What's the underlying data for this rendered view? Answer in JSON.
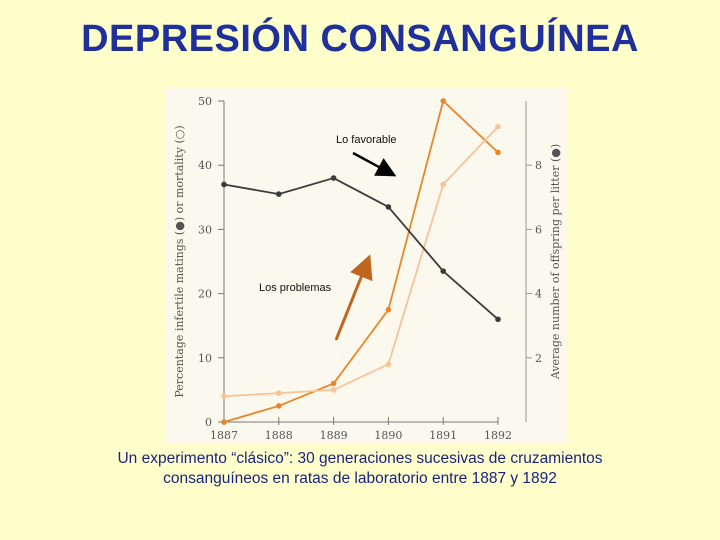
{
  "slide": {
    "title": "DEPRESIÓN CONSANGUÍNEA",
    "caption_line1": "Un experimento “clásico”: 30 generaciones sucesivas de cruzamientos",
    "caption_line2": "consanguíneos en ratas de laboratorio entre 1887 y 1892"
  },
  "annotations": {
    "favorable": "Lo favorable",
    "problems": "Los problemas"
  },
  "chart_data": {
    "type": "line",
    "x": [
      "1887",
      "1888",
      "1889",
      "1890",
      "1891",
      "1892"
    ],
    "ylabel_left": "Percentage infertile matings (●) or mortality (○)",
    "ylabel_right": "Average number of offspring per litter (●)",
    "ylim_left": [
      0,
      50
    ],
    "ylim_right": [
      0,
      10
    ],
    "yticks_left": [
      0,
      10,
      20,
      30,
      40,
      50
    ],
    "yticks_right": [
      2,
      4,
      6,
      8
    ],
    "grid": false,
    "series": [
      {
        "axis": "left",
        "color": "#e8872a",
        "values": [
          0,
          2.5,
          6,
          17.5,
          50,
          42
        ]
      },
      {
        "axis": "left",
        "color": "#f5c49a",
        "values": [
          4,
          4.5,
          5,
          9,
          37,
          46
        ]
      },
      {
        "axis": "right",
        "color": "#3b3b3b",
        "values": [
          7.4,
          7.1,
          7.6,
          6.7,
          4.7,
          3.2
        ]
      }
    ]
  }
}
